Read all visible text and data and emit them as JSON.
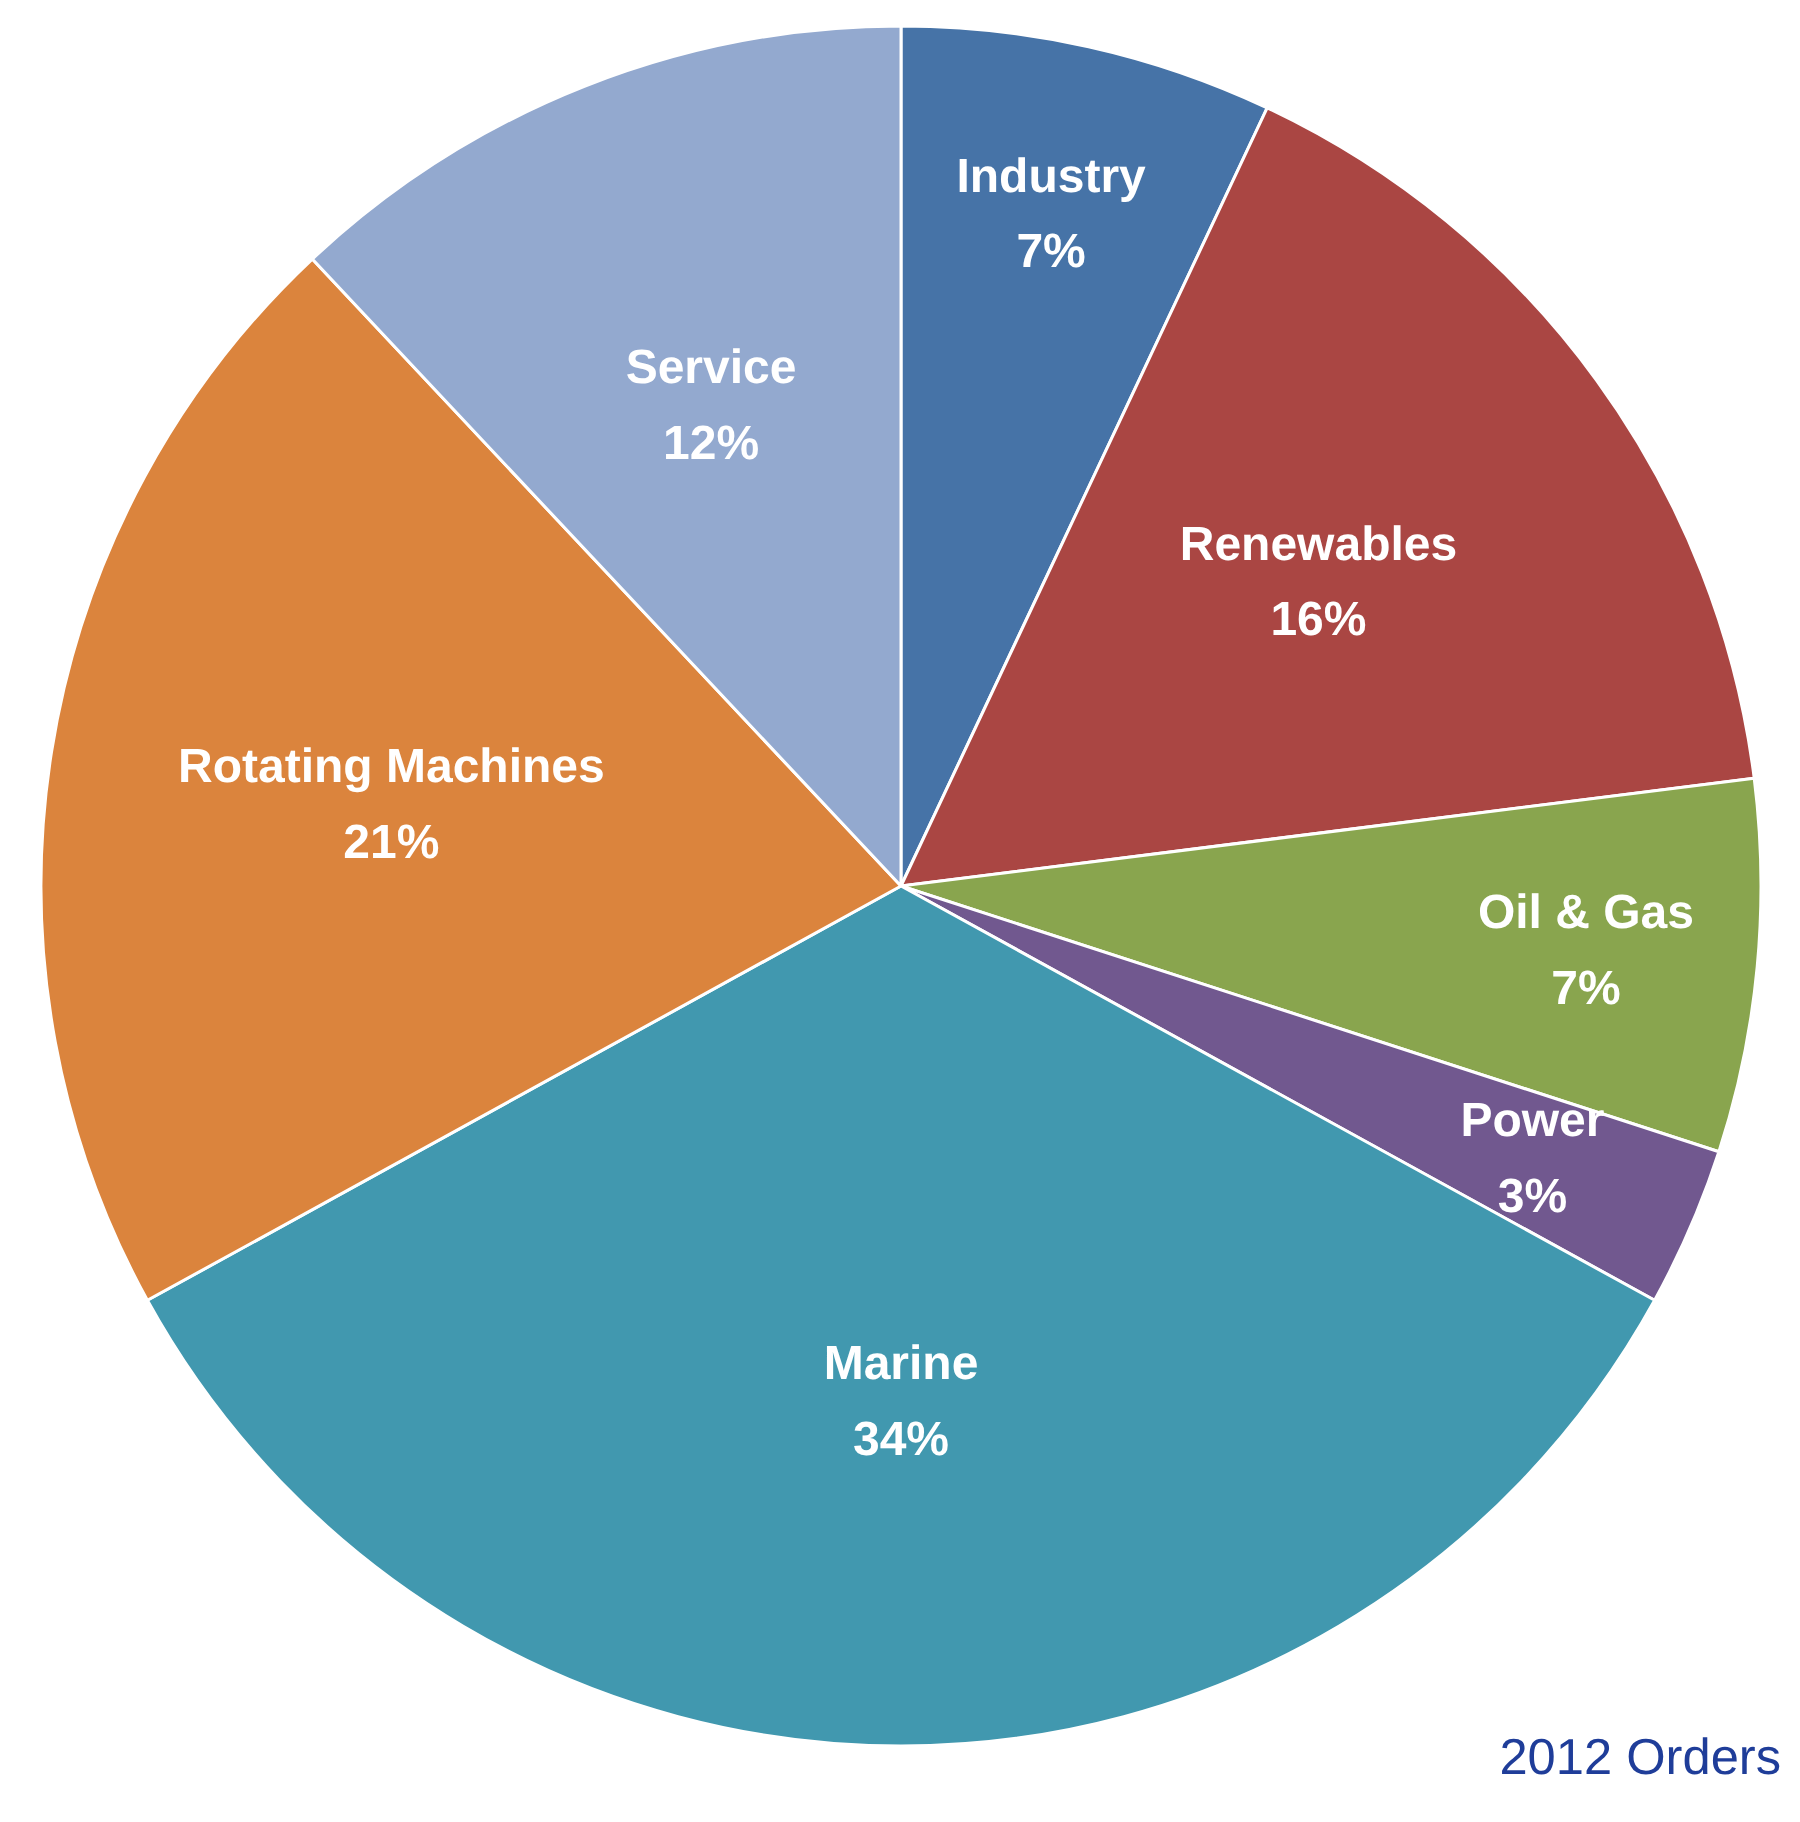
{
  "chart_data": {
    "type": "pie",
    "categories": [
      "Industry",
      "Renewables",
      "Oil & Gas",
      "Power",
      "Marine",
      "Rotating Machines",
      "Service"
    ],
    "values": [
      7,
      16,
      7,
      3,
      34,
      21,
      12
    ],
    "colors": [
      "#4673a7",
      "#aa4643",
      "#89a54e",
      "#71588f",
      "#4198af",
      "#db843d",
      "#93a9cf"
    ],
    "value_labels": [
      "7%",
      "16%",
      "7%",
      "3%",
      "34%",
      "21%",
      "12%"
    ],
    "annotations": [
      "2012 Orders"
    ]
  }
}
